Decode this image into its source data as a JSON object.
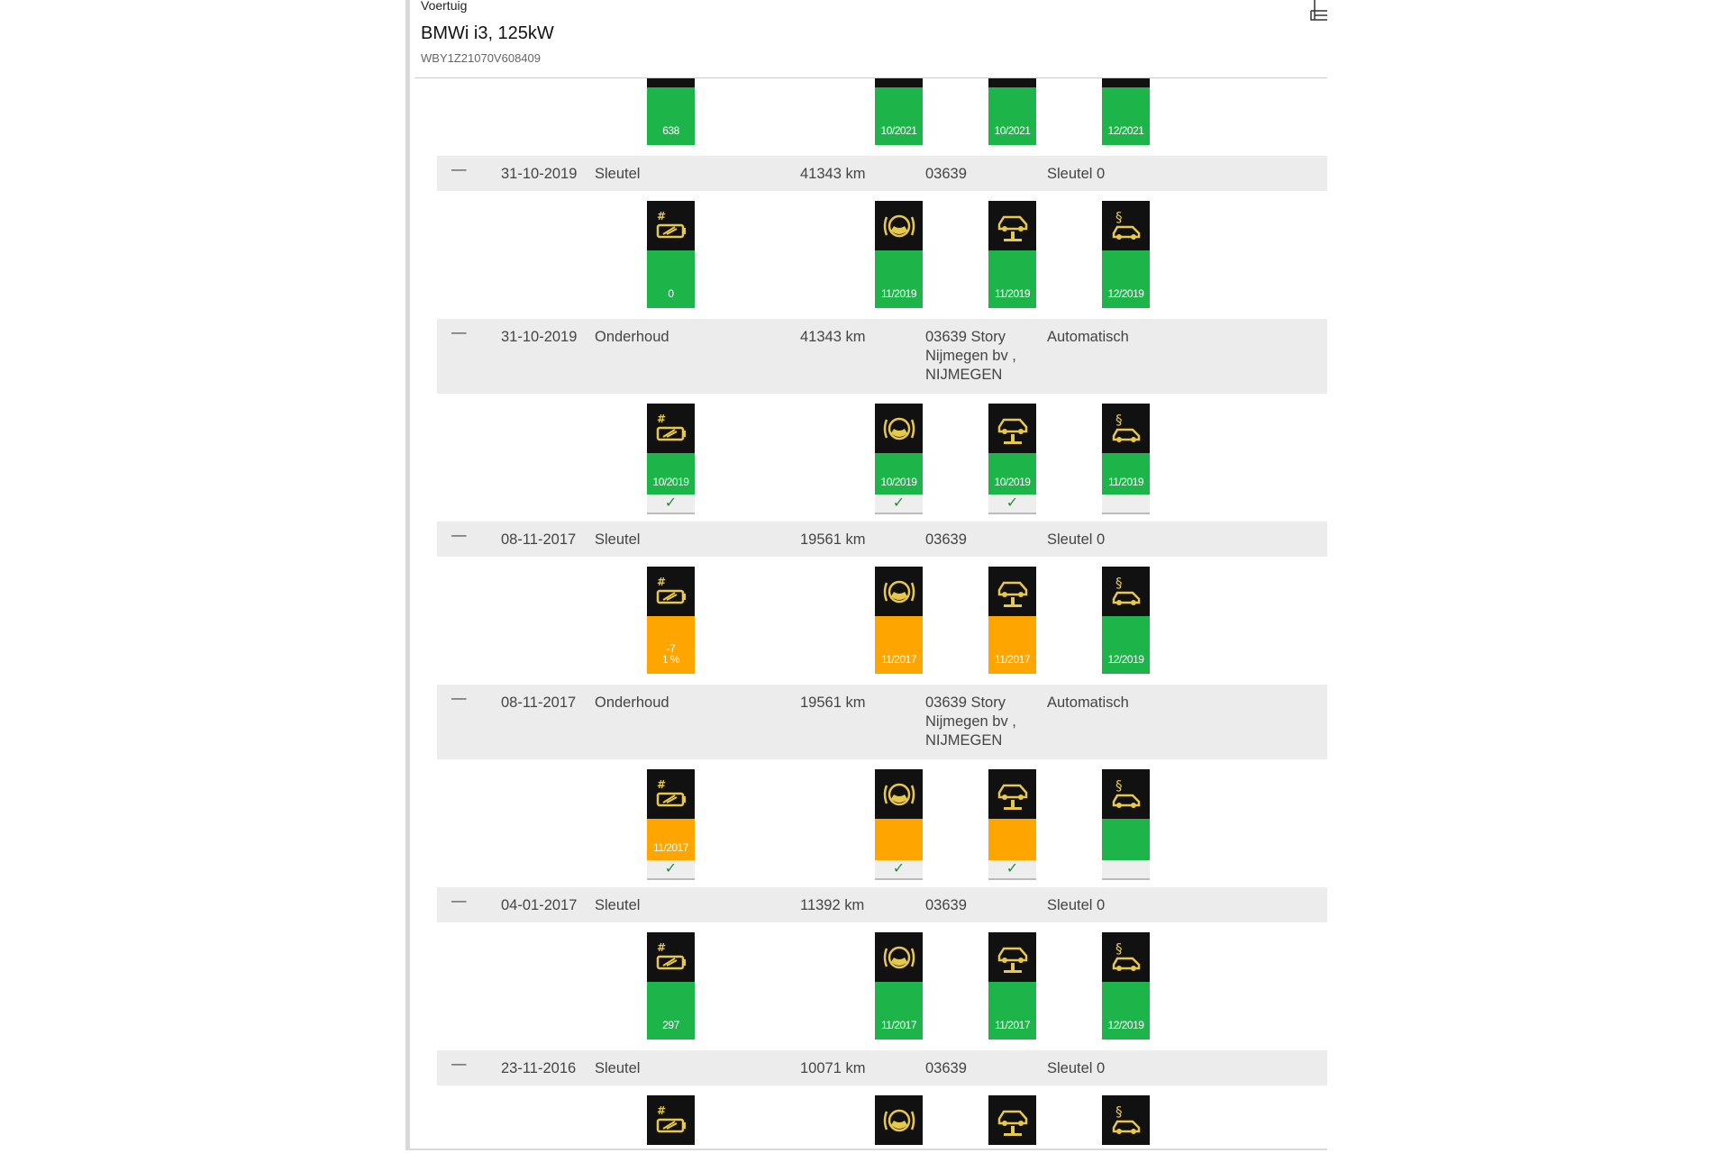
{
  "header": {
    "label": "Voertuig",
    "title": "BMWi i3, 125kW",
    "vin": "WBY1Z21070V608409",
    "icon": "hierarchy-icon"
  },
  "colors": {
    "green": "#1db54a",
    "orange": "#ffa500",
    "icon": "#e8c84a"
  },
  "icons": [
    "battery-service-icon",
    "brake-fluid-icon",
    "vehicle-inspection-icon",
    "legal-inspection-icon"
  ],
  "items": [
    {
      "kind": "tiles",
      "tiles": [
        {
          "label": "638",
          "status": "green"
        },
        {
          "label": "10/2021",
          "status": "green"
        },
        {
          "label": "10/2021",
          "status": "green"
        },
        {
          "label": "12/2021",
          "status": "green"
        }
      ]
    },
    {
      "kind": "row",
      "dash": "—",
      "date": "31-10-2019",
      "type": "Sleutel",
      "km": "41343 km",
      "dealer": "03639",
      "source": "Sleutel 0"
    },
    {
      "kind": "tiles",
      "tiles": [
        {
          "label": "0",
          "status": "green"
        },
        {
          "label": "11/2019",
          "status": "green"
        },
        {
          "label": "11/2019",
          "status": "green"
        },
        {
          "label": "12/2019",
          "status": "green"
        }
      ]
    },
    {
      "kind": "row",
      "dash": "—",
      "date": "31-10-2019",
      "type": "Onderhoud",
      "km": "41343 km",
      "dealer": "03639 Story\nNijmegen bv ,\nNIJMEGEN",
      "source": "Automatisch"
    },
    {
      "kind": "tiles",
      "checks": true,
      "tiles": [
        {
          "label": "10/2019",
          "status": "green",
          "checked": true
        },
        {
          "label": "10/2019",
          "status": "green",
          "checked": true
        },
        {
          "label": "10/2019",
          "status": "green",
          "checked": true
        },
        {
          "label": "11/2019",
          "status": "green",
          "checked": false
        }
      ]
    },
    {
      "kind": "row",
      "dash": "—",
      "date": "08-11-2017",
      "type": "Sleutel",
      "km": "19561 km",
      "dealer": "03639",
      "source": "Sleutel 0"
    },
    {
      "kind": "tiles",
      "tiles": [
        {
          "label": "-7\n1 %",
          "status": "orange"
        },
        {
          "label": "11/2017",
          "status": "orange"
        },
        {
          "label": "11/2017",
          "status": "orange"
        },
        {
          "label": "12/2019",
          "status": "green"
        }
      ]
    },
    {
      "kind": "row",
      "dash": "—",
      "date": "08-11-2017",
      "type": "Onderhoud",
      "km": "19561 km",
      "dealer": "03639 Story\nNijmegen bv ,\nNIJMEGEN",
      "source": "Automatisch"
    },
    {
      "kind": "tiles",
      "checks": true,
      "tiles": [
        {
          "label": "11/2017",
          "status": "orange",
          "checked": true
        },
        {
          "label": "",
          "status": "orange",
          "checked": true
        },
        {
          "label": "",
          "status": "orange",
          "checked": true
        },
        {
          "label": "",
          "status": "green",
          "checked": false
        }
      ]
    },
    {
      "kind": "row",
      "dash": "—",
      "date": "04-01-2017",
      "type": "Sleutel",
      "km": "11392 km",
      "dealer": "03639",
      "source": "Sleutel 0"
    },
    {
      "kind": "tiles",
      "tiles": [
        {
          "label": "297",
          "status": "green"
        },
        {
          "label": "11/2017",
          "status": "green"
        },
        {
          "label": "11/2017",
          "status": "green"
        },
        {
          "label": "12/2019",
          "status": "green"
        }
      ]
    },
    {
      "kind": "row",
      "dash": "—",
      "date": "23-11-2016",
      "type": "Sleutel",
      "km": "10071 km",
      "dealer": "03639",
      "source": "Sleutel 0"
    },
    {
      "kind": "tiles",
      "tiles": [
        {
          "label": "",
          "status": "green"
        },
        {
          "label": "",
          "status": "green"
        },
        {
          "label": "",
          "status": "green"
        },
        {
          "label": "",
          "status": "green"
        }
      ]
    }
  ]
}
